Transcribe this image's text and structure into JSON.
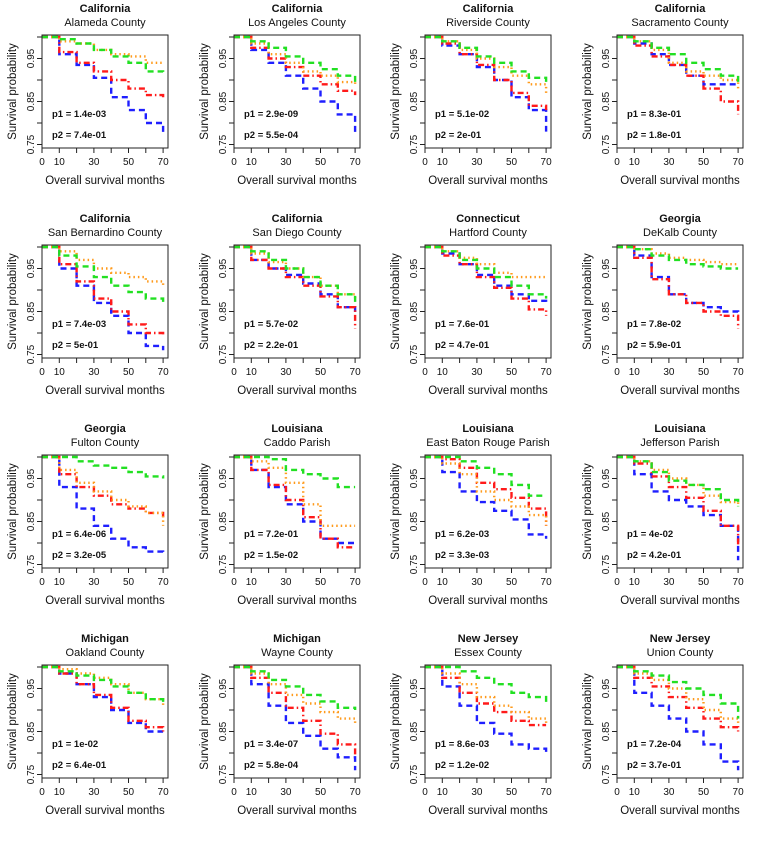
{
  "chart_data": {
    "type": "line",
    "layout": "4x4 grid of Kaplan-Meier survival curves",
    "xlabel": "Overall survival months",
    "ylabel": "Survival probability",
    "xlim": [
      0,
      72
    ],
    "ylim": [
      0.745,
      1.004
    ],
    "x_ticks": [
      0,
      10,
      20,
      30,
      40,
      50,
      60,
      70
    ],
    "x_tick_labels": [
      "0",
      "10",
      "",
      "30",
      "",
      "50",
      "",
      "70"
    ],
    "y_ticks": [
      0.75,
      0.8,
      0.85,
      0.9,
      0.95,
      1.0
    ],
    "y_tick_labels": [
      "0.75",
      "",
      "0.85",
      "",
      "0.95",
      ""
    ],
    "x": [
      0,
      10,
      20,
      30,
      40,
      50,
      60,
      70
    ],
    "series_styles": [
      {
        "key": "blue",
        "color": "#1f1fff",
        "dash": "dashed"
      },
      {
        "key": "red",
        "color": "#ff1a1a",
        "dash": "dotdash"
      },
      {
        "key": "orange",
        "color": "#ff9a1a",
        "dash": "dotted"
      },
      {
        "key": "green",
        "color": "#22e022",
        "dash": "dashed"
      }
    ],
    "panels": [
      {
        "state": "California",
        "county": "Alameda County",
        "p1": "p1 = 1.4e-03",
        "p2": "p2 = 7.4e-01",
        "series": {
          "blue": [
            1,
            0.96,
            0.935,
            0.905,
            0.86,
            0.83,
            0.8,
            0.77
          ],
          "red": [
            1,
            0.965,
            0.94,
            0.92,
            0.9,
            0.88,
            0.865,
            0.86
          ],
          "orange": [
            1,
            0.99,
            0.985,
            0.97,
            0.96,
            0.955,
            0.94,
            0.94
          ],
          "green": [
            1,
            0.995,
            0.985,
            0.97,
            0.955,
            0.94,
            0.92,
            0.91
          ]
        }
      },
      {
        "state": "California",
        "county": "Los Angeles County",
        "p1": "p1 = 2.9e-09",
        "p2": "p2 = 5.5e-04",
        "series": {
          "blue": [
            1,
            0.97,
            0.94,
            0.91,
            0.88,
            0.85,
            0.82,
            0.77
          ],
          "red": [
            1,
            0.975,
            0.95,
            0.93,
            0.91,
            0.89,
            0.875,
            0.865
          ],
          "orange": [
            1,
            0.985,
            0.96,
            0.94,
            0.92,
            0.91,
            0.895,
            0.885
          ],
          "green": [
            1,
            0.99,
            0.975,
            0.955,
            0.94,
            0.925,
            0.91,
            0.895
          ]
        }
      },
      {
        "state": "California",
        "county": "Riverside County",
        "p1": "p1 = 5.1e-02",
        "p2": "p2 = 2e-01",
        "series": {
          "blue": [
            1,
            0.98,
            0.96,
            0.93,
            0.9,
            0.86,
            0.83,
            0.78
          ],
          "red": [
            1,
            0.985,
            0.96,
            0.935,
            0.9,
            0.87,
            0.84,
            0.83
          ],
          "orange": [
            1,
            0.99,
            0.97,
            0.95,
            0.93,
            0.91,
            0.89,
            0.87
          ],
          "green": [
            1,
            0.99,
            0.975,
            0.955,
            0.94,
            0.92,
            0.905,
            0.89
          ]
        }
      },
      {
        "state": "California",
        "county": "Sacramento County",
        "p1": "p1 = 8.3e-01",
        "p2": "p2 = 1.8e-01",
        "series": {
          "blue": [
            1,
            0.985,
            0.96,
            0.935,
            0.91,
            0.89,
            0.89,
            0.89
          ],
          "red": [
            1,
            0.98,
            0.955,
            0.935,
            0.91,
            0.88,
            0.85,
            0.82
          ],
          "orange": [
            1,
            0.99,
            0.97,
            0.94,
            0.92,
            0.91,
            0.9,
            0.88
          ],
          "green": [
            1,
            0.99,
            0.975,
            0.96,
            0.94,
            0.925,
            0.91,
            0.89
          ]
        }
      },
      {
        "state": "California",
        "county": "San Bernardino County",
        "p1": "p1 = 7.4e-03",
        "p2": "p2 = 5e-01",
        "series": {
          "blue": [
            1,
            0.95,
            0.91,
            0.87,
            0.84,
            0.8,
            0.77,
            0.76
          ],
          "red": [
            1,
            0.96,
            0.92,
            0.88,
            0.85,
            0.82,
            0.8,
            0.79
          ],
          "orange": [
            1,
            0.99,
            0.97,
            0.95,
            0.94,
            0.93,
            0.92,
            0.91
          ],
          "green": [
            1,
            0.98,
            0.955,
            0.93,
            0.91,
            0.895,
            0.88,
            0.87
          ]
        }
      },
      {
        "state": "California",
        "county": "San Diego County",
        "p1": "p1 = 5.7e-02",
        "p2": "p2 = 2.2e-01",
        "series": {
          "blue": [
            1,
            0.97,
            0.95,
            0.935,
            0.915,
            0.89,
            0.86,
            0.84
          ],
          "red": [
            1,
            0.97,
            0.95,
            0.93,
            0.91,
            0.885,
            0.86,
            0.81
          ],
          "orange": [
            1,
            0.985,
            0.965,
            0.95,
            0.93,
            0.91,
            0.89,
            0.88
          ],
          "green": [
            1,
            0.99,
            0.97,
            0.95,
            0.93,
            0.91,
            0.89,
            0.87
          ]
        }
      },
      {
        "state": "Connecticut",
        "county": "Hartford County",
        "p1": "p1 = 7.6e-01",
        "p2": "p2 = 4.7e-01",
        "series": {
          "blue": [
            1,
            0.985,
            0.96,
            0.935,
            0.91,
            0.89,
            0.875,
            0.87
          ],
          "red": [
            1,
            0.98,
            0.96,
            0.93,
            0.905,
            0.88,
            0.855,
            0.84
          ],
          "orange": [
            1,
            0.99,
            0.975,
            0.96,
            0.94,
            0.93,
            0.93,
            0.93
          ],
          "green": [
            1,
            0.99,
            0.97,
            0.95,
            0.93,
            0.91,
            0.89,
            0.88
          ]
        }
      },
      {
        "state": "Georgia",
        "county": "DeKalb County",
        "p1": "p1 = 7.8e-02",
        "p2": "p2 = 5.9e-01",
        "series": {
          "blue": [
            1,
            0.98,
            0.93,
            0.89,
            0.87,
            0.86,
            0.85,
            0.84
          ],
          "red": [
            1,
            0.975,
            0.925,
            0.89,
            0.87,
            0.85,
            0.84,
            0.81
          ],
          "orange": [
            1,
            0.995,
            0.985,
            0.975,
            0.97,
            0.965,
            0.96,
            0.96
          ],
          "green": [
            1,
            0.995,
            0.98,
            0.97,
            0.96,
            0.955,
            0.95,
            0.95
          ]
        }
      },
      {
        "state": "Georgia",
        "county": "Fulton County",
        "p1": "p1 = 6.4e-06",
        "p2": "p2 = 3.2e-05",
        "series": {
          "blue": [
            1,
            0.93,
            0.88,
            0.84,
            0.81,
            0.79,
            0.78,
            0.77
          ],
          "red": [
            1,
            0.96,
            0.93,
            0.91,
            0.89,
            0.88,
            0.87,
            0.86
          ],
          "orange": [
            1,
            0.97,
            0.94,
            0.92,
            0.9,
            0.885,
            0.87,
            0.84
          ],
          "green": [
            1,
            1,
            0.99,
            0.98,
            0.975,
            0.965,
            0.955,
            0.95
          ]
        }
      },
      {
        "state": "Louisiana",
        "county": "Caddo Parish",
        "p1": "p1 = 7.2e-01",
        "p2": "p2 = 1.5e-02",
        "series": {
          "blue": [
            1,
            0.97,
            0.93,
            0.89,
            0.85,
            0.81,
            0.8,
            0.8
          ],
          "red": [
            1,
            0.97,
            0.935,
            0.9,
            0.86,
            0.81,
            0.79,
            0.79
          ],
          "orange": [
            1,
            0.99,
            0.975,
            0.94,
            0.89,
            0.84,
            0.84,
            0.84
          ],
          "green": [
            1,
            1,
            0.995,
            0.97,
            0.96,
            0.95,
            0.93,
            0.93
          ]
        }
      },
      {
        "state": "Louisiana",
        "county": "East Baton Rouge Parish",
        "p1": "p1 = 6.2e-03",
        "p2": "p2 = 3.3e-03",
        "series": {
          "blue": [
            1,
            0.965,
            0.92,
            0.895,
            0.875,
            0.855,
            0.82,
            0.81
          ],
          "red": [
            1,
            0.995,
            0.975,
            0.94,
            0.925,
            0.905,
            0.88,
            0.84
          ],
          "orange": [
            1,
            0.985,
            0.96,
            0.92,
            0.9,
            0.885,
            0.865,
            0.84
          ],
          "green": [
            1,
            1,
            0.99,
            0.975,
            0.96,
            0.935,
            0.91,
            0.91
          ]
        }
      },
      {
        "state": "Louisiana",
        "county": "Jefferson Parish",
        "p1": "p1 = 4e-02",
        "p2": "p2 = 4.2e-01",
        "series": {
          "blue": [
            1,
            0.96,
            0.92,
            0.9,
            0.885,
            0.865,
            0.84,
            0.76
          ],
          "red": [
            1,
            0.985,
            0.955,
            0.93,
            0.905,
            0.875,
            0.84,
            0.79
          ],
          "orange": [
            1,
            0.99,
            0.97,
            0.95,
            0.935,
            0.91,
            0.895,
            0.89
          ],
          "green": [
            1,
            0.99,
            0.965,
            0.945,
            0.935,
            0.925,
            0.9,
            0.885
          ]
        }
      },
      {
        "state": "Michigan",
        "county": "Oakland County",
        "p1": "p1 = 1e-02",
        "p2": "p2 = 6.4e-01",
        "series": {
          "blue": [
            1,
            0.985,
            0.96,
            0.93,
            0.9,
            0.87,
            0.85,
            0.85
          ],
          "red": [
            1,
            0.985,
            0.96,
            0.935,
            0.905,
            0.875,
            0.86,
            0.85
          ],
          "orange": [
            1,
            0.995,
            0.985,
            0.975,
            0.96,
            0.94,
            0.925,
            0.91
          ],
          "green": [
            1,
            0.99,
            0.98,
            0.97,
            0.955,
            0.94,
            0.925,
            0.91
          ]
        }
      },
      {
        "state": "Michigan",
        "county": "Wayne County",
        "p1": "p1 = 3.4e-07",
        "p2": "p2 = 5.8e-04",
        "series": {
          "blue": [
            1,
            0.96,
            0.91,
            0.87,
            0.84,
            0.81,
            0.79,
            0.76
          ],
          "red": [
            1,
            0.975,
            0.94,
            0.905,
            0.875,
            0.845,
            0.82,
            0.79
          ],
          "orange": [
            1,
            0.985,
            0.96,
            0.935,
            0.915,
            0.895,
            0.88,
            0.87
          ],
          "green": [
            1,
            0.99,
            0.97,
            0.955,
            0.935,
            0.92,
            0.905,
            0.9
          ]
        }
      },
      {
        "state": "New Jersey",
        "county": "Essex County",
        "p1": "p1 = 8.6e-03",
        "p2": "p2 = 1.2e-02",
        "series": {
          "blue": [
            1,
            0.955,
            0.91,
            0.87,
            0.845,
            0.82,
            0.81,
            0.8
          ],
          "red": [
            1,
            0.975,
            0.94,
            0.915,
            0.895,
            0.875,
            0.865,
            0.865
          ],
          "orange": [
            1,
            0.985,
            0.96,
            0.93,
            0.91,
            0.895,
            0.88,
            0.87
          ],
          "green": [
            1,
            1,
            0.99,
            0.975,
            0.96,
            0.94,
            0.93,
            0.91
          ]
        }
      },
      {
        "state": "New Jersey",
        "county": "Union County",
        "p1": "p1 = 7.2e-04",
        "p2": "p2 = 3.7e-01",
        "series": {
          "blue": [
            1,
            0.94,
            0.91,
            0.88,
            0.85,
            0.82,
            0.78,
            0.76
          ],
          "red": [
            1,
            0.975,
            0.955,
            0.93,
            0.905,
            0.88,
            0.86,
            0.85
          ],
          "orange": [
            1,
            0.985,
            0.97,
            0.95,
            0.925,
            0.9,
            0.88,
            0.87
          ],
          "green": [
            1,
            0.99,
            0.98,
            0.965,
            0.95,
            0.935,
            0.915,
            0.88
          ]
        }
      }
    ]
  }
}
